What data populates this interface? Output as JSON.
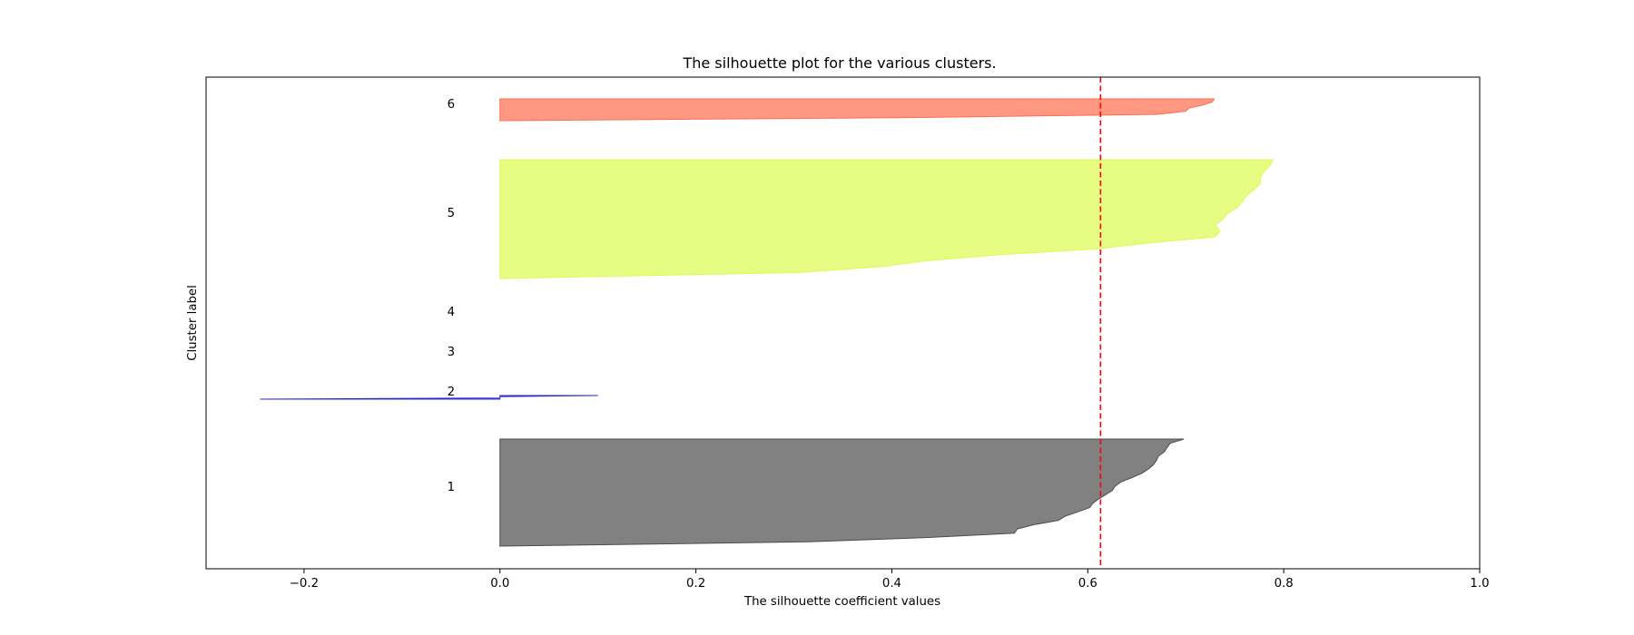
{
  "chart_data": {
    "type": "area",
    "title": "The silhouette plot for the various clusters.",
    "xlabel": "The silhouette coefficient values",
    "ylabel": "Cluster label",
    "xlim": [
      -0.3,
      1.0
    ],
    "xticks": [
      {
        "value": -0.2,
        "label": "−0.2"
      },
      {
        "value": 0.0,
        "label": "0.0"
      },
      {
        "value": 0.2,
        "label": "0.2"
      },
      {
        "value": 0.4,
        "label": "0.4"
      },
      {
        "value": 0.6,
        "label": "0.6"
      },
      {
        "value": 0.8,
        "label": "0.8"
      },
      {
        "value": 1.0,
        "label": "1.0"
      }
    ],
    "yticks_shown": false,
    "grid": false,
    "average_silhouette_score": 0.613,
    "average_line": {
      "color": "#ff0000",
      "style": "dashed"
    },
    "clusters": [
      {
        "label": "1",
        "color": "#4c4c4c",
        "values": [
          0.0,
          0.315,
          0.435,
          0.525,
          0.528,
          0.545,
          0.57,
          0.577,
          0.59,
          0.602,
          0.605,
          0.611,
          0.618,
          0.625,
          0.628,
          0.634,
          0.645,
          0.655,
          0.662,
          0.667,
          0.67,
          0.672,
          0.678,
          0.681,
          0.684,
          0.698
        ]
      },
      {
        "label": "2",
        "color": "#2b2bc8",
        "values": [
          -0.245,
          0.0,
          0.0,
          0.1
        ]
      },
      {
        "label": "3",
        "color": "#00a0d0",
        "values": []
      },
      {
        "label": "4",
        "color": "#00c040",
        "values": []
      },
      {
        "label": "5",
        "color": "#dcfb4e",
        "values": [
          0.0,
          0.305,
          0.39,
          0.435,
          0.51,
          0.61,
          0.663,
          0.73,
          0.735,
          0.73,
          0.738,
          0.743,
          0.753,
          0.758,
          0.762,
          0.77,
          0.776,
          0.776,
          0.78,
          0.786,
          0.789
        ]
      },
      {
        "label": "6",
        "color": "#ff6c4f",
        "values": [
          0.0,
          0.42,
          0.67,
          0.7,
          0.703,
          0.717,
          0.727,
          0.729
        ]
      }
    ]
  }
}
